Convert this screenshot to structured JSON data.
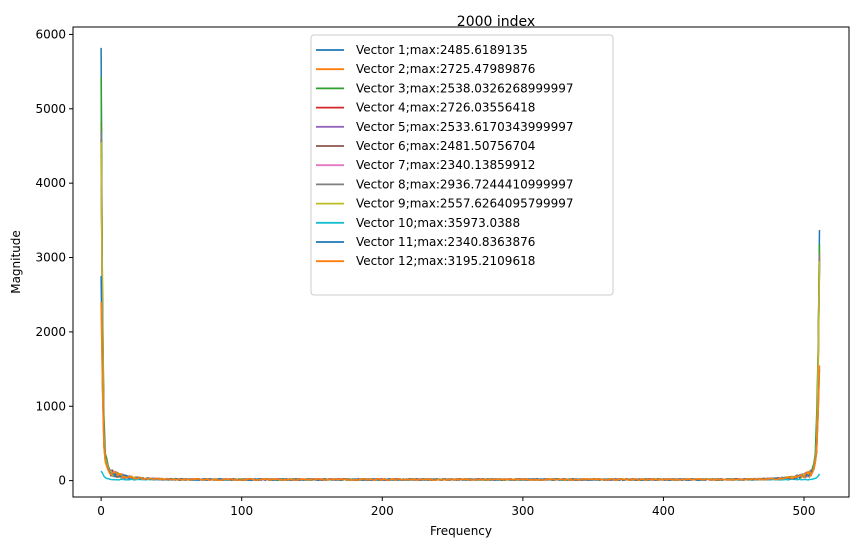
{
  "chart_data": {
    "type": "line",
    "title": "2000 index",
    "xlabel": "Frequency",
    "ylabel": "Magnitude",
    "xlim": [
      -20,
      532
    ],
    "ylim": [
      -220,
      6100
    ],
    "xticks": [
      0,
      100,
      200,
      300,
      400,
      500
    ],
    "yticks": [
      0,
      1000,
      2000,
      3000,
      4000,
      5000,
      6000
    ],
    "grid": false,
    "legend_position": "upper-center",
    "series": [
      {
        "name": "Vector 1;max:2485.6189135",
        "color": "#1f77b4",
        "start": [
          5820,
          1700,
          520,
          300,
          210,
          160,
          130
        ],
        "end": [
          140,
          180,
          260,
          380,
          1450,
          3370
        ]
      },
      {
        "name": "Vector 2;max:2725.47989876",
        "color": "#ff7f0e",
        "start": [
          4820,
          2500,
          700,
          330,
          260,
          190,
          140
        ],
        "end": [
          150,
          200,
          320,
          500,
          1600,
          3100
        ]
      },
      {
        "name": "Vector 3;max:2538.0326268999997",
        "color": "#2ca02c",
        "start": [
          5430,
          2300,
          880,
          360,
          300,
          200,
          150
        ],
        "end": [
          170,
          230,
          360,
          880,
          1700,
          3180
        ]
      },
      {
        "name": "Vector 4;max:2726.03556418",
        "color": "#d62728",
        "start": [
          4600,
          2100,
          600,
          310,
          240,
          180,
          130
        ],
        "end": [
          140,
          190,
          300,
          520,
          1500,
          3000
        ]
      },
      {
        "name": "Vector 5;max:2533.6170343999997",
        "color": "#9467bd",
        "start": [
          4500,
          2000,
          560,
          300,
          230,
          170,
          120
        ],
        "end": [
          130,
          180,
          290,
          500,
          1450,
          2950
        ]
      },
      {
        "name": "Vector 6;max:2481.50756704",
        "color": "#8c564b",
        "start": [
          4400,
          1950,
          540,
          290,
          220,
          160,
          120
        ],
        "end": [
          130,
          170,
          280,
          480,
          1400,
          2900
        ]
      },
      {
        "name": "Vector 7;max:2340.13859912",
        "color": "#e377c2",
        "start": [
          4300,
          1900,
          520,
          280,
          210,
          150,
          110
        ],
        "end": [
          120,
          160,
          270,
          460,
          1350,
          2850
        ]
      },
      {
        "name": "Vector 8;max:2936.7244410999997",
        "color": "#7f7f7f",
        "start": [
          4700,
          2200,
          640,
          320,
          250,
          180,
          130
        ],
        "end": [
          140,
          190,
          310,
          540,
          1550,
          3050
        ]
      },
      {
        "name": "Vector 9;max:2557.6264095799997",
        "color": "#bcbd22",
        "start": [
          4550,
          2050,
          580,
          300,
          230,
          170,
          120
        ],
        "end": [
          130,
          180,
          290,
          500,
          1450,
          2950
        ]
      },
      {
        "name": "Vector 10;max:35973.0388",
        "color": "#17becf",
        "start": [
          130,
          100,
          60,
          40,
          30,
          25,
          20
        ],
        "end": [
          20,
          25,
          30,
          40,
          60,
          90
        ]
      },
      {
        "name": "Vector 11;max:2340.8363876",
        "color": "#1f77b4",
        "start": [
          2750,
          1300,
          480,
          260,
          200,
          150,
          110
        ],
        "end": [
          120,
          160,
          250,
          420,
          900,
          1500
        ]
      },
      {
        "name": "Vector 12;max:3195.2109618",
        "color": "#ff7f0e",
        "start": [
          2400,
          1200,
          450,
          250,
          190,
          140,
          100
        ],
        "end": [
          110,
          150,
          240,
          400,
          880,
          1550
        ]
      }
    ]
  }
}
